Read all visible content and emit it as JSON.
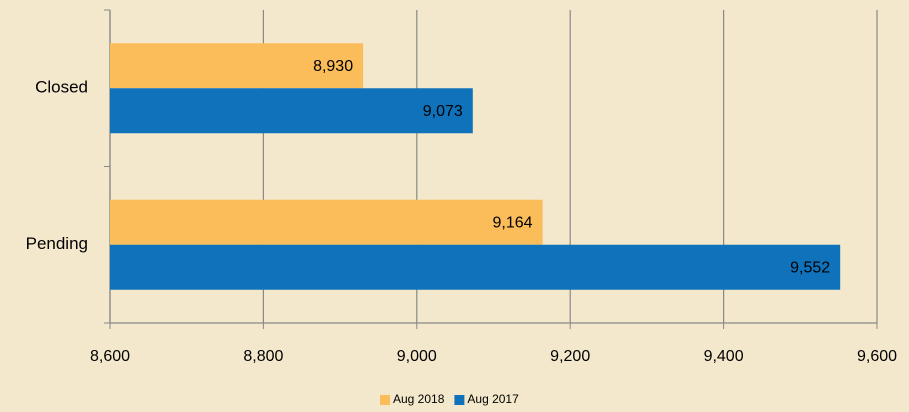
{
  "chart_data": {
    "type": "barh",
    "categories": [
      "Closed",
      "Pending"
    ],
    "series": [
      {
        "name": "Aug 2018",
        "color": "#fbbc5a",
        "values": [
          8930,
          9164
        ],
        "value_labels": [
          "8,930",
          "9,164"
        ]
      },
      {
        "name": "Aug 2017",
        "color": "#0f72bb",
        "values": [
          9073,
          9552
        ],
        "value_labels": [
          "9,073",
          "9,552"
        ]
      }
    ],
    "xlim": [
      8600,
      9600
    ],
    "xticks": [
      {
        "value": 8600,
        "label": "8,600"
      },
      {
        "value": 8800,
        "label": "8,800"
      },
      {
        "value": 9000,
        "label": "9,000"
      },
      {
        "value": 9200,
        "label": "9,200"
      },
      {
        "value": 9400,
        "label": "9,400"
      },
      {
        "value": 9600,
        "label": "9,600"
      }
    ],
    "grid": true,
    "legend": "bottom"
  }
}
